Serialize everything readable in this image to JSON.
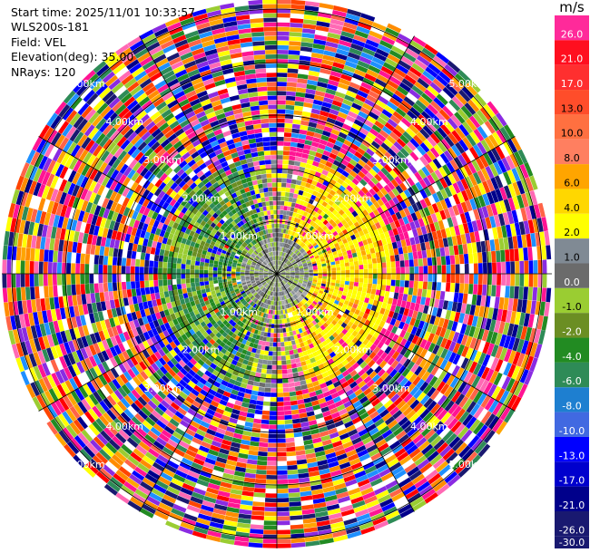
{
  "header": {
    "start_time": "Start time: 2025/11/01 10:33:57",
    "instrument": "WLS200s-181",
    "field": "Field: VEL",
    "elevation": "Elevation(deg): 35.00",
    "nrays": "NRays: 120"
  },
  "colorbar": {
    "unit": "m/s",
    "bins": [
      {
        "label": "26.0",
        "color": "#ff2a9a"
      },
      {
        "label": "21.0",
        "color": "#ff0f1f"
      },
      {
        "label": "17.0",
        "color": "#ff2f2f"
      },
      {
        "label": "13.0",
        "color": "#ff4d2a"
      },
      {
        "label": "10.0",
        "color": "#ff7040"
      },
      {
        "label": "8.0",
        "color": "#ff7f60"
      },
      {
        "label": "6.0",
        "color": "#ffa500"
      },
      {
        "label": "4.0",
        "color": "#ffd700"
      },
      {
        "label": "2.0",
        "color": "#ffff00"
      },
      {
        "label": "1.0",
        "color": "#808a94"
      },
      {
        "label": "0.0",
        "color": "#6b6b6b"
      },
      {
        "label": "-1.0",
        "color": "#9acd32"
      },
      {
        "label": "-2.0",
        "color": "#6b8e23"
      },
      {
        "label": "-4.0",
        "color": "#228b22"
      },
      {
        "label": "-6.0",
        "color": "#2e8b57"
      },
      {
        "label": "-8.0",
        "color": "#1e7fd0"
      },
      {
        "label": "-10.0",
        "color": "#4169e1"
      },
      {
        "label": "-13.0",
        "color": "#0000ff"
      },
      {
        "label": "-17.0",
        "color": "#0000cd"
      },
      {
        "label": "-21.0",
        "color": "#00008b"
      },
      {
        "label": "-26.0",
        "color": "#191970"
      },
      {
        "label": "-30.0",
        "color": ""
      }
    ]
  },
  "range_rings": [
    {
      "label": "1.00km"
    },
    {
      "label": "2.00km"
    },
    {
      "label": "3.00km"
    },
    {
      "label": "4.00km"
    },
    {
      "label": "5.00km"
    }
  ]
}
